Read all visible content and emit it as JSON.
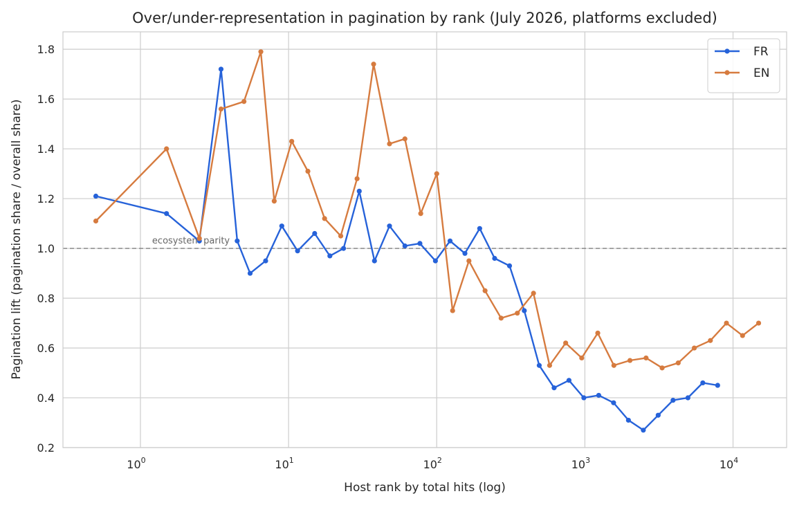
{
  "chart_data": {
    "type": "line",
    "title": "Over/under-representation in pagination by rank (July 2026, platforms excluded)",
    "xlabel": "Host rank by total hits (log)",
    "ylabel": "Pagination lift (pagination share / overall share)",
    "x_scale": "log",
    "xlim": [
      0.3,
      23000
    ],
    "ylim": [
      0.2,
      1.87
    ],
    "x_ticks": [
      {
        "value": 1,
        "base": "10",
        "exp": "0"
      },
      {
        "value": 10,
        "base": "10",
        "exp": "1"
      },
      {
        "value": 100,
        "base": "10",
        "exp": "2"
      },
      {
        "value": 1000,
        "base": "10",
        "exp": "3"
      },
      {
        "value": 10000,
        "base": "10",
        "exp": "4"
      }
    ],
    "y_ticks": [
      {
        "value": 0.2,
        "label": "0.2"
      },
      {
        "value": 0.4,
        "label": "0.4"
      },
      {
        "value": 0.6,
        "label": "0.6"
      },
      {
        "value": 0.8,
        "label": "0.8"
      },
      {
        "value": 1.0,
        "label": "1.0"
      },
      {
        "value": 1.2,
        "label": "1.2"
      },
      {
        "value": 1.4,
        "label": "1.4"
      },
      {
        "value": 1.6,
        "label": "1.6"
      },
      {
        "value": 1.8,
        "label": "1.8"
      }
    ],
    "grid": true,
    "legend_position": "top-right",
    "reference_line": {
      "y": 1.0,
      "label": "ecosystem parity",
      "label_x": 1.2,
      "color": "#808080"
    },
    "series": [
      {
        "name": "FR",
        "color": "#2662d9",
        "x": [
          0.5,
          1.5,
          2.5,
          3.5,
          4.5,
          5.5,
          7,
          9,
          11.5,
          15,
          19,
          23.5,
          30,
          38,
          48,
          61,
          77,
          98,
          123,
          155,
          195,
          246,
          310,
          390,
          492,
          620,
          781,
          984,
          1240,
          1562,
          1968,
          2480,
          3125,
          3937,
          4961,
          6250,
          7875
        ],
        "values": [
          1.21,
          1.14,
          1.03,
          1.72,
          1.03,
          0.9,
          0.95,
          1.09,
          0.99,
          1.06,
          0.97,
          1.0,
          1.23,
          0.95,
          1.09,
          1.01,
          1.02,
          0.95,
          1.03,
          0.98,
          1.08,
          0.96,
          0.93,
          0.75,
          0.53,
          0.44,
          0.47,
          0.4,
          0.41,
          0.38,
          0.31,
          0.27,
          0.33,
          0.39,
          0.4,
          0.46,
          0.45
        ]
      },
      {
        "name": "EN",
        "color": "#d67b3f",
        "x": [
          0.5,
          1.5,
          2.5,
          3.5,
          5,
          6.5,
          8,
          10.5,
          13.5,
          17.5,
          22.5,
          29,
          37.5,
          48,
          61,
          78,
          100,
          128,
          165,
          212,
          272,
          350,
          450,
          578,
          742,
          952,
          1222,
          1570,
          2015,
          2588,
          3322,
          4266,
          5477,
          7032,
          9029,
          11592,
          14884
        ],
        "values": [
          1.11,
          1.4,
          1.04,
          1.56,
          1.59,
          1.79,
          1.19,
          1.43,
          1.31,
          1.12,
          1.05,
          1.28,
          1.74,
          1.42,
          1.44,
          1.14,
          1.3,
          0.75,
          0.95,
          0.83,
          0.72,
          0.74,
          0.82,
          0.53,
          0.62,
          0.56,
          0.66,
          0.53,
          0.55,
          0.56,
          0.52,
          0.54,
          0.6,
          0.63,
          0.7,
          0.65,
          0.7
        ]
      }
    ]
  }
}
